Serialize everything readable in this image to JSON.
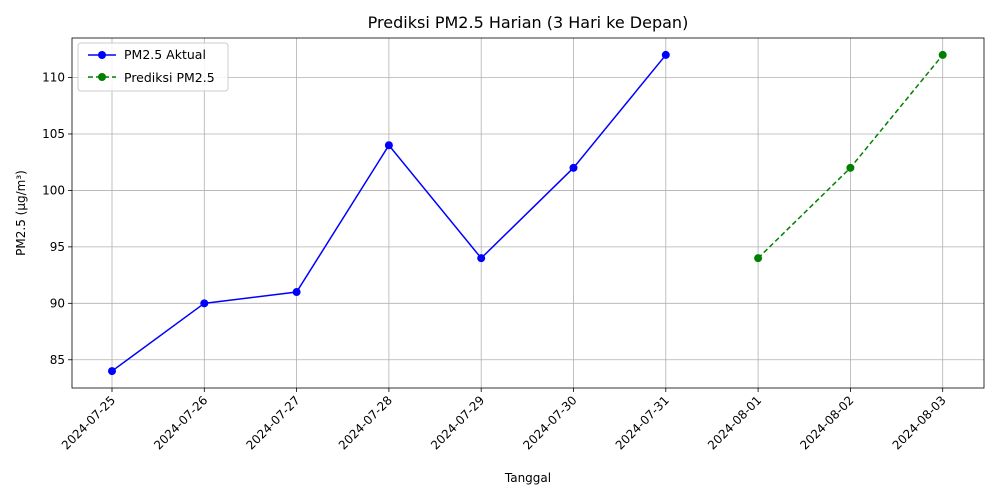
{
  "chart_data": {
    "type": "line",
    "title": "Prediksi PM2.5 Harian (3 Hari ke Depan)",
    "xlabel": "Tanggal",
    "ylabel": "PM2.5 (µg/m³)",
    "categories": [
      "2024-07-25",
      "2024-07-26",
      "2024-07-27",
      "2024-07-28",
      "2024-07-29",
      "2024-07-30",
      "2024-07-31",
      "2024-08-01",
      "2024-08-02",
      "2024-08-03"
    ],
    "ylim": [
      82.5,
      113.5
    ],
    "yticks": [
      85,
      90,
      95,
      100,
      105,
      110
    ],
    "grid": true,
    "legend_position": "top-left",
    "series": [
      {
        "name": "PM2.5 Aktual",
        "color": "#0000ff",
        "line_style": "solid",
        "marker": "circle",
        "x": [
          "2024-07-25",
          "2024-07-26",
          "2024-07-27",
          "2024-07-28",
          "2024-07-29",
          "2024-07-30",
          "2024-07-31"
        ],
        "values": [
          84,
          90,
          91,
          104,
          94,
          102,
          112
        ]
      },
      {
        "name": "Prediksi PM2.5",
        "color": "#008000",
        "line_style": "dashed",
        "marker": "circle",
        "x": [
          "2024-08-01",
          "2024-08-02",
          "2024-08-03"
        ],
        "values": [
          94,
          102,
          112
        ]
      }
    ]
  }
}
